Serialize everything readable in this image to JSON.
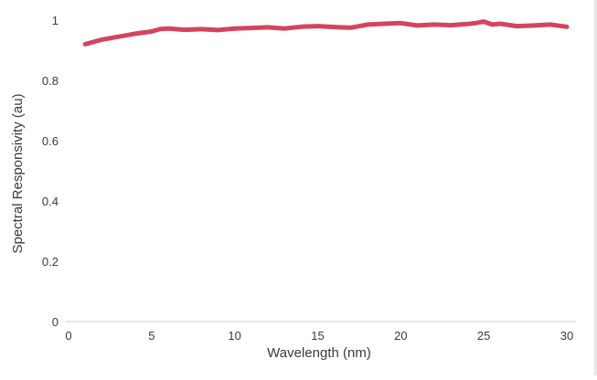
{
  "chart_data": {
    "type": "line",
    "title": "",
    "xlabel": "Wavelength (nm)",
    "ylabel": "Spectral Responsivity (au)",
    "xlim": [
      0,
      30
    ],
    "ylim": [
      0,
      1
    ],
    "x_ticks": [
      "0",
      "5",
      "10",
      "15",
      "20",
      "25",
      "30"
    ],
    "y_ticks": [
      "0",
      "0.2",
      "0.4",
      "0.6",
      "0.8",
      "1"
    ],
    "grid": false,
    "legend": "none",
    "line_color": "#d5445e",
    "series": [
      {
        "x": [
          1,
          2,
          3,
          4,
          5,
          5.5,
          6,
          7,
          8,
          9,
          10,
          11,
          12,
          13,
          14,
          15,
          16,
          17,
          18,
          19,
          20,
          21,
          22,
          23,
          24,
          24.5,
          25,
          25.5,
          26,
          27,
          28,
          29,
          30
        ],
        "y": [
          0.92,
          0.935,
          0.945,
          0.955,
          0.962,
          0.97,
          0.972,
          0.968,
          0.97,
          0.967,
          0.972,
          0.974,
          0.976,
          0.972,
          0.978,
          0.98,
          0.977,
          0.975,
          0.985,
          0.988,
          0.99,
          0.982,
          0.985,
          0.983,
          0.987,
          0.99,
          0.995,
          0.985,
          0.988,
          0.98,
          0.982,
          0.985,
          0.978
        ]
      }
    ]
  }
}
